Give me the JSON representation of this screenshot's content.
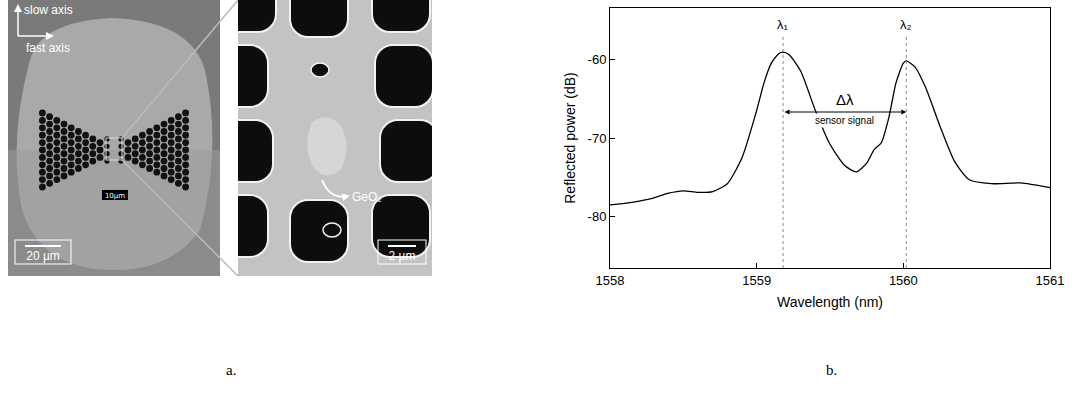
{
  "chart_data": {
    "type": "line",
    "xlabel": "Wavelength (nm)",
    "ylabel": "Reflected power (dB)",
    "x": [
      1558.0,
      1558.1,
      1558.2,
      1558.3,
      1558.4,
      1558.5,
      1558.6,
      1558.7,
      1558.8,
      1558.9,
      1559.0,
      1559.05,
      1559.1,
      1559.15,
      1559.18,
      1559.22,
      1559.3,
      1559.4,
      1559.5,
      1559.6,
      1559.68,
      1559.75,
      1559.8,
      1559.85,
      1559.9,
      1559.95,
      1560.0,
      1560.02,
      1560.08,
      1560.15,
      1560.25,
      1560.35,
      1560.45,
      1560.6,
      1560.8,
      1561.0
    ],
    "values": [
      -78.5,
      -78.3,
      -78.0,
      -77.6,
      -77.0,
      -76.7,
      -76.9,
      -76.8,
      -75.8,
      -72.5,
      -66.5,
      -63.0,
      -60.5,
      -59.3,
      -59.1,
      -59.4,
      -61.5,
      -66.5,
      -70.8,
      -73.5,
      -74.3,
      -73.2,
      -71.5,
      -70.6,
      -67.5,
      -63.0,
      -60.5,
      -60.2,
      -61.0,
      -63.5,
      -68.5,
      -73.0,
      -75.3,
      -75.8,
      -75.7,
      -76.3
    ],
    "color": "#000000",
    "xlim": [
      1558,
      1561
    ],
    "xticks": [
      1558,
      1559,
      1560,
      1561
    ],
    "ylim": [
      -86.5,
      -53.5
    ],
    "yticks": [
      -80,
      -70,
      -60
    ],
    "grid": false,
    "peaks": [
      {
        "label": "λ₁",
        "x": 1559.18
      },
      {
        "label": "λ₂",
        "x": 1560.02
      }
    ],
    "interval": {
      "label": "Δλ",
      "sublabel": "sensor signal",
      "from": 1559.18,
      "to": 1560.02
    }
  },
  "micrograph": {
    "axis_labels": [
      "slow axis",
      "fast axis"
    ],
    "scale_bars": [
      "20 µm",
      "10µm",
      "2 µm"
    ],
    "material_label": "GeO₂"
  },
  "captions": [
    "a.",
    "b."
  ]
}
